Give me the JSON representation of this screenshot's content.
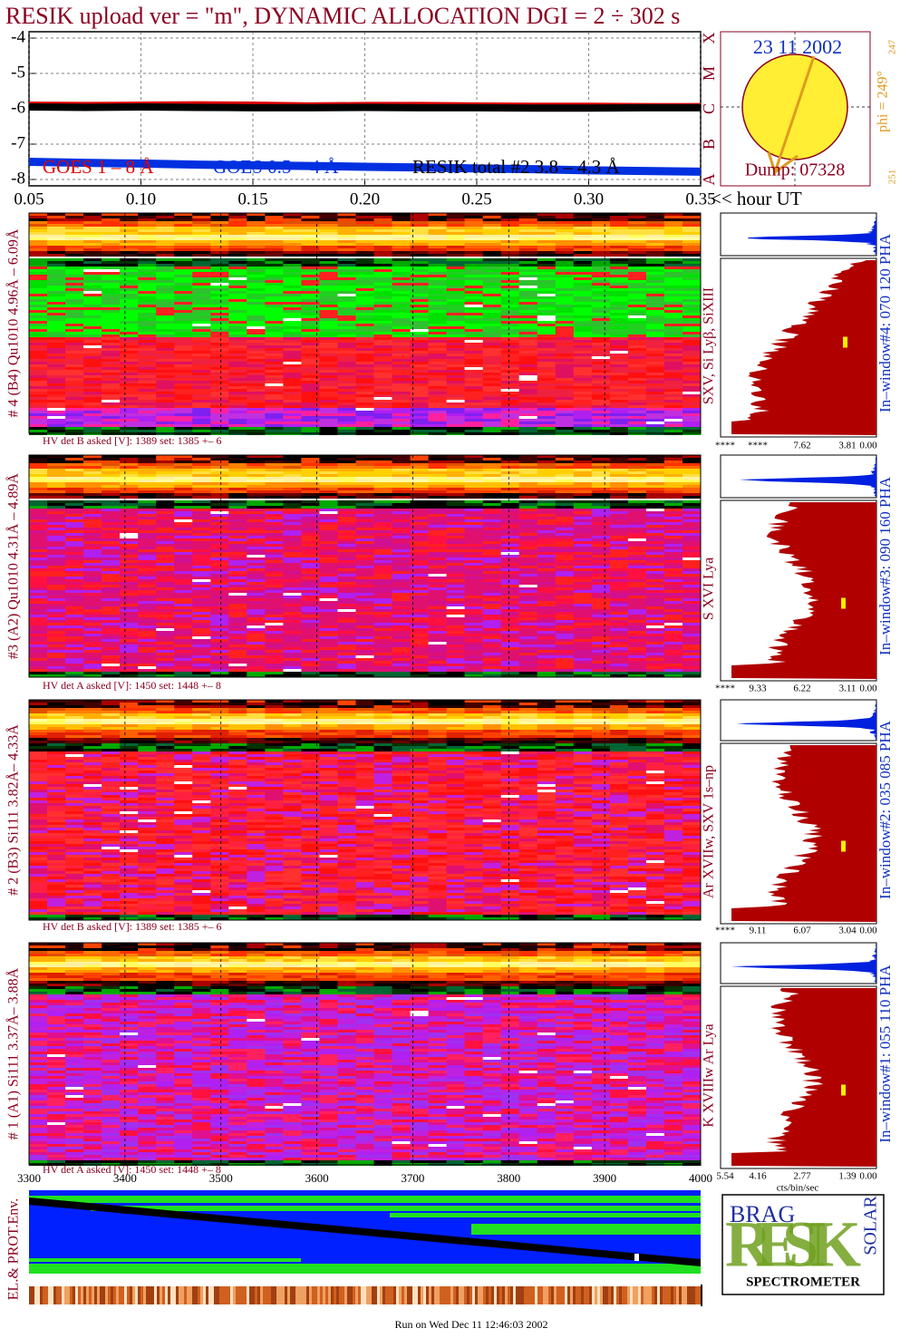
{
  "title": "RESIK upload ver = \"m\", DYNAMIC ALLOCATION  DGI =   2 ÷ 302 s",
  "chart_data": [
    {
      "type": "line",
      "x_label": "<< hour UT",
      "x": [
        0.05,
        0.075,
        0.1,
        0.125,
        0.15,
        0.175,
        0.2,
        0.225,
        0.25,
        0.275,
        0.3,
        0.325,
        0.35
      ],
      "series": [
        {
          "name": "GOES 1 – 8 Å",
          "color": "#e00000",
          "values": [
            -5.86,
            -5.87,
            -5.86,
            -5.85,
            -5.86,
            -5.88,
            -5.87,
            -5.87,
            -5.88,
            -5.89,
            -5.89,
            -5.9,
            -5.9
          ]
        },
        {
          "name": "GOES 0.5 – 4 Å",
          "color": "#0030e0",
          "values": [
            -7.5,
            -7.53,
            -7.55,
            -7.58,
            -7.6,
            -7.62,
            -7.64,
            -7.66,
            -7.69,
            -7.71,
            -7.74,
            -7.76,
            -7.78
          ]
        },
        {
          "name": "RESIK total #2  3.8 – 4.3 Å",
          "color": "#000000",
          "values": [
            -5.95,
            -5.96,
            -5.95,
            -5.96,
            -5.97,
            -5.97,
            -5.96,
            -5.97,
            -5.97,
            -5.98,
            -5.98,
            -5.97,
            -5.97
          ]
        }
      ],
      "xlim": [
        0.05,
        0.35
      ],
      "xticks": [
        0.05,
        {
          "value": 0.1,
          "label": "0.10"
        },
        0.15,
        {
          "value": 0.2,
          "label": "0.20"
        },
        0.25,
        {
          "value": 0.3,
          "label": "0.30"
        },
        0.35
      ],
      "ylim": [
        -8.18,
        -3.82
      ],
      "yticks": [
        -4,
        -5,
        -6,
        -7,
        -8
      ],
      "y2lim": [
        -8.18,
        -3.82
      ],
      "y2ticks": [
        {
          "value": -8,
          "label": "A"
        },
        {
          "value": -7,
          "label": "B"
        },
        {
          "value": -6,
          "label": "C"
        },
        {
          "value": -5,
          "label": "M"
        },
        {
          "value": -4,
          "label": "X"
        }
      ],
      "grid": true
    }
  ],
  "sun_panel": {
    "date": "23 11 2002",
    "phi": "phi = 249°",
    "phi_min": "247",
    "phi_max": "251",
    "dump": "Dump: 07328"
  },
  "detectors": [
    {
      "label": "# 4 (B4) Qu1010 4.96Å – 6.09Å",
      "hv": "HV det B asked [V]:  1389 set:  1385 +–   6",
      "lines": "SXV, Si Lyβ, SiXIII",
      "window": "In–window#4:  070 120 PHA",
      "pha_ticks": [
        "****",
        "****",
        "7.62",
        "3.81",
        "0.00"
      ],
      "scheme": "green"
    },
    {
      "label": "#3 (A2) Qu1010  4.31Å – 4.89Å",
      "hv": "HV det A asked [V]:  1450 set:  1448 +–   8",
      "lines": "S XVI Lya",
      "window": "In–window#3:  090 160 PHA",
      "pha_ticks": [
        "****",
        "9.33",
        "6.22",
        "3.11",
        "0.00"
      ],
      "scheme": "magenta"
    },
    {
      "label": "# 2 (B3) Si111  3.82Å– 4.33Å",
      "hv": "HV det B asked [V]:  1389 set:  1385 +–   6",
      "lines": "Ar XVIIw,  SXV 1s–np",
      "window": "In–window#2:  035 085 PHA",
      "pha_ticks": [
        "****",
        "9.11",
        "6.07",
        "3.04",
        "0.00"
      ],
      "scheme": "red"
    },
    {
      "label": "# 1 (A1) Si111  3.37Å– 3.88Å",
      "hv": "HV det A asked [V]:  1450 set:  1448 +–   8",
      "lines": "K XVIIIw  Ar Lya",
      "window": "In–window#1:  055 110 PHA",
      "pha_ticks": [
        "5.54",
        "4.16",
        "2.77",
        "1.39",
        "0.00"
      ],
      "scheme": "purple"
    }
  ],
  "wavelength_axis": {
    "xlim": [
      3300,
      4000
    ],
    "xticks": [
      3300,
      3400,
      3500,
      3600,
      3700,
      3800,
      3900,
      4000
    ]
  },
  "pha_unit": "cts/bin/sec",
  "env_label": "EL.& PROT.Env.",
  "logo": {
    "top": "BRAG",
    "main": "RESIK",
    "side": "SOLAR",
    "bottom": "SPECTROMETER"
  },
  "footer": "Run on Wed Dec 11 12:46:03 2002"
}
